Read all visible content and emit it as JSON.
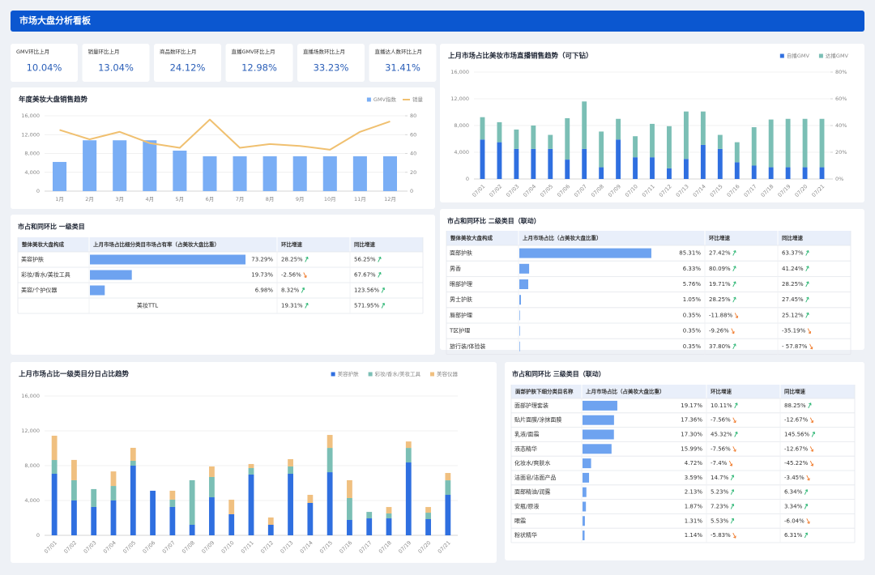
{
  "header": {
    "title": "市场大盘分析看板"
  },
  "kpis": [
    {
      "label": "GMV环比上月",
      "value": "10.04%"
    },
    {
      "label": "销量环比上月",
      "value": "13.04%"
    },
    {
      "label": "商品数环比上月",
      "value": "24.12%"
    },
    {
      "label": "直播GMV环比上月",
      "value": "12.98%"
    },
    {
      "label": "直播场数环比上月",
      "value": "33.23%"
    },
    {
      "label": "直播达人数环比上月",
      "value": "31.41%"
    }
  ],
  "chart_data": [
    {
      "type": "bar_line",
      "title": "年度美妆大盘销售趋势",
      "categories": [
        "1月",
        "2月",
        "3月",
        "4月",
        "5月",
        "6月",
        "7月",
        "8月",
        "9月",
        "10月",
        "11月",
        "12月"
      ],
      "series": [
        {
          "name": "GMV指数",
          "color": "#7aaef5",
          "kind": "bar",
          "values": [
            6200,
            10800,
            10800,
            10800,
            8600,
            7400,
            7400,
            7400,
            7400,
            7400,
            7400,
            7400
          ]
        },
        {
          "name": "销量",
          "color": "#f0c070",
          "kind": "line",
          "axis": "y2",
          "values": [
            65,
            55,
            63,
            51,
            46,
            76,
            46,
            50,
            48,
            44,
            63,
            74
          ]
        }
      ],
      "ylim": [
        0,
        16000
      ],
      "yticks": [
        0,
        {
          "value": 4000,
          "label": "4,000"
        },
        {
          "value": 8000,
          "label": "8,000"
        },
        {
          "value": 12000,
          "label": "12,000"
        },
        {
          "value": 16000,
          "label": "16,000"
        }
      ],
      "y2lim": [
        0,
        80
      ],
      "y2ticks": [
        0,
        20,
        40,
        60,
        80
      ],
      "grid": true,
      "legend": "top-right"
    },
    {
      "type": "stacked_bar",
      "title": "上月市场占比美妆市场直播销售趋势（可下钻）",
      "categories": [
        "07/01",
        "07/02",
        "07/03",
        "07/04",
        "07/05",
        "07/06",
        "07/07",
        "07/08",
        "07/09",
        "07/10",
        "07/11",
        "07/12",
        "07/13",
        "07/14",
        "07/15",
        "07/16",
        "07/17",
        "07/18",
        "07/19",
        "07/20",
        "07/21"
      ],
      "series": [
        {
          "name": "自播GMV",
          "color": "#2f6fe0",
          "values": [
            5900,
            5500,
            4500,
            4500,
            4500,
            2900,
            4500,
            1750,
            5900,
            3250,
            3250,
            1600,
            3000,
            5100,
            4500,
            2500,
            2000,
            1750,
            1750,
            1750,
            1750
          ]
        },
        {
          "name": "达播GMV",
          "color": "#7bbfb5",
          "values": [
            3350,
            3000,
            2900,
            3500,
            2100,
            6200,
            7100,
            5350,
            3100,
            3150,
            5000,
            6300,
            7100,
            5000,
            2100,
            3000,
            5750,
            7150,
            7250,
            7250,
            7250
          ]
        }
      ],
      "ylim": [
        0,
        16000
      ],
      "yticks": [
        0,
        {
          "value": 4000,
          "label": "4,000"
        },
        {
          "value": 8000,
          "label": "8,000"
        },
        {
          "value": 12000,
          "label": "12,000"
        },
        {
          "value": 16000,
          "label": "16,000"
        }
      ],
      "y2lim": [
        0,
        80
      ],
      "y2ticks": [
        {
          "value": 0,
          "label": "0%"
        },
        {
          "value": 20,
          "label": "20%"
        },
        {
          "value": 40,
          "label": "40%"
        },
        {
          "value": 60,
          "label": "60%"
        },
        {
          "value": 80,
          "label": "80%"
        }
      ],
      "grid": true,
      "legend": "top-right"
    },
    {
      "type": "stacked_bar",
      "title": "上月市场占比一级类目分日占比趋势",
      "categories": [
        "07/01",
        "07/02",
        "07/03",
        "07/04",
        "07/05",
        "07/06",
        "07/07",
        "07/08",
        "07/09",
        "07/10",
        "07/11",
        "07/12",
        "07/13",
        "07/14",
        "07/15",
        "07/16",
        "07/17",
        "07/18",
        "07/19",
        "07/20",
        "07/21"
      ],
      "series": [
        {
          "name": "美容护肤",
          "color": "#2f6fe0",
          "values": [
            7070,
            4000,
            3260,
            4000,
            8000,
            5120,
            3260,
            1210,
            4370,
            2420,
            6980,
            1210,
            7070,
            3720,
            7250,
            1770,
            1950,
            1950,
            8370,
            1860,
            4650
          ]
        },
        {
          "name": "彩妆/香水/美妆工具",
          "color": "#7bbfb5",
          "values": [
            1580,
            2330,
            2050,
            1670,
            560,
            0,
            840,
            5120,
            2330,
            0,
            740,
            0,
            840,
            0,
            2790,
            2510,
            740,
            560,
            1670,
            740,
            1670
          ]
        },
        {
          "name": "美容仪器",
          "color": "#f0c080",
          "values": [
            2790,
            2330,
            0,
            1670,
            1490,
            0,
            1020,
            0,
            1210,
            1670,
            470,
            840,
            840,
            930,
            1490,
            2050,
            0,
            740,
            740,
            650,
            840
          ]
        }
      ],
      "ylim": [
        0,
        16000
      ],
      "yticks": [
        0,
        {
          "value": 4000,
          "label": "4,000"
        },
        {
          "value": 8000,
          "label": "8,000"
        },
        {
          "value": 12000,
          "label": "12,000"
        },
        {
          "value": 16000,
          "label": "16,000"
        }
      ],
      "grid": true,
      "legend": "top-right"
    }
  ],
  "tables": [
    {
      "title": "市占和同环比  一级类目",
      "columns": [
        "整体美妆大盘构成",
        "上月市场占比细分类目市场占有率（占美妆大盘比重）",
        "环比增速",
        "同比增速"
      ],
      "rows": [
        {
          "name": "美容护肤",
          "share": "73.29%",
          "mom": "28.25%",
          "yoy": "56.25%"
        },
        {
          "name": "彩妆/香水/美妆工具",
          "share": "19.73%",
          "mom": "-2.56%",
          "yoy": "67.67%"
        },
        {
          "name": "美容/个护仪器",
          "share": "6.98%",
          "mom": "8.32%",
          "yoy": "123.56%"
        }
      ],
      "total": {
        "name": "美妆TTL",
        "mom": "19.31%",
        "yoy": "571.95%"
      }
    },
    {
      "title": "市占和同环比  二级类目（联动）",
      "columns": [
        "整体美妆大盘构成",
        "上月市场占比（占美妆大盘比重）",
        "环比增速",
        "同比增速"
      ],
      "rows": [
        {
          "name": "面部护肤",
          "share": "85.31%",
          "mom": "27.42%",
          "yoy": "63.37%"
        },
        {
          "name": "男香",
          "share": "6.33%",
          "mom": "80.09%",
          "yoy": "41.24%"
        },
        {
          "name": "眼部护理",
          "share": "5.76%",
          "mom": "19.71%",
          "yoy": "28.25%"
        },
        {
          "name": "男士护肤",
          "share": "1.05%",
          "mom": "28.25%",
          "yoy": "27.45%"
        },
        {
          "name": "唇部护理",
          "share": "0.35%",
          "mom": "-11.88%",
          "yoy": "25.12%"
        },
        {
          "name": "T区护理",
          "share": "0.35%",
          "mom": "-9.26%",
          "yoy": "-35.19%"
        },
        {
          "name": "旅行装/体验装",
          "share": "0.35%",
          "mom": "37.80%",
          "yoy": "- 57.87%"
        }
      ]
    },
    {
      "title": "市占和同环比  三级类目（联动）",
      "columns": [
        "面部护肤下细分类目名称",
        "上月市场占比（占美妆大盘比重）",
        "环比增速",
        "同比增速"
      ],
      "rows": [
        {
          "name": "面部护理套装",
          "share": "19.17%",
          "mom": "10.11%",
          "yoy": "88.25%"
        },
        {
          "name": "贴片面膜/涂抹面膜",
          "share": "17.36%",
          "mom": "-7.56%",
          "yoy": "-12.67%"
        },
        {
          "name": "乳液/面霜",
          "share": "17.30%",
          "mom": "45.32%",
          "yoy": "145.56%"
        },
        {
          "name": "液态精华",
          "share": "15.99%",
          "mom": "-7.56%",
          "yoy": "-12.67%"
        },
        {
          "name": "化妆水/爽肤水",
          "share": "4.72%",
          "mom": "-7.4%",
          "yoy": "-45.22%"
        },
        {
          "name": "洁面皂/洁面产品",
          "share": "3.59%",
          "mom": "14.7%",
          "yoy": "-3.45%"
        },
        {
          "name": "面部精油/润露",
          "share": "2.13%",
          "mom": "5.23%",
          "yoy": "6.34%"
        },
        {
          "name": "安瓶/原液",
          "share": "1.87%",
          "mom": "7.23%",
          "yoy": "3.34%"
        },
        {
          "name": "眼霜",
          "share": "1.31%",
          "mom": "5.53%",
          "yoy": "-6.04%"
        },
        {
          "name": "粉状精华",
          "share": "1.14%",
          "mom": "-5.83%",
          "yoy": "6.31%"
        }
      ]
    }
  ]
}
